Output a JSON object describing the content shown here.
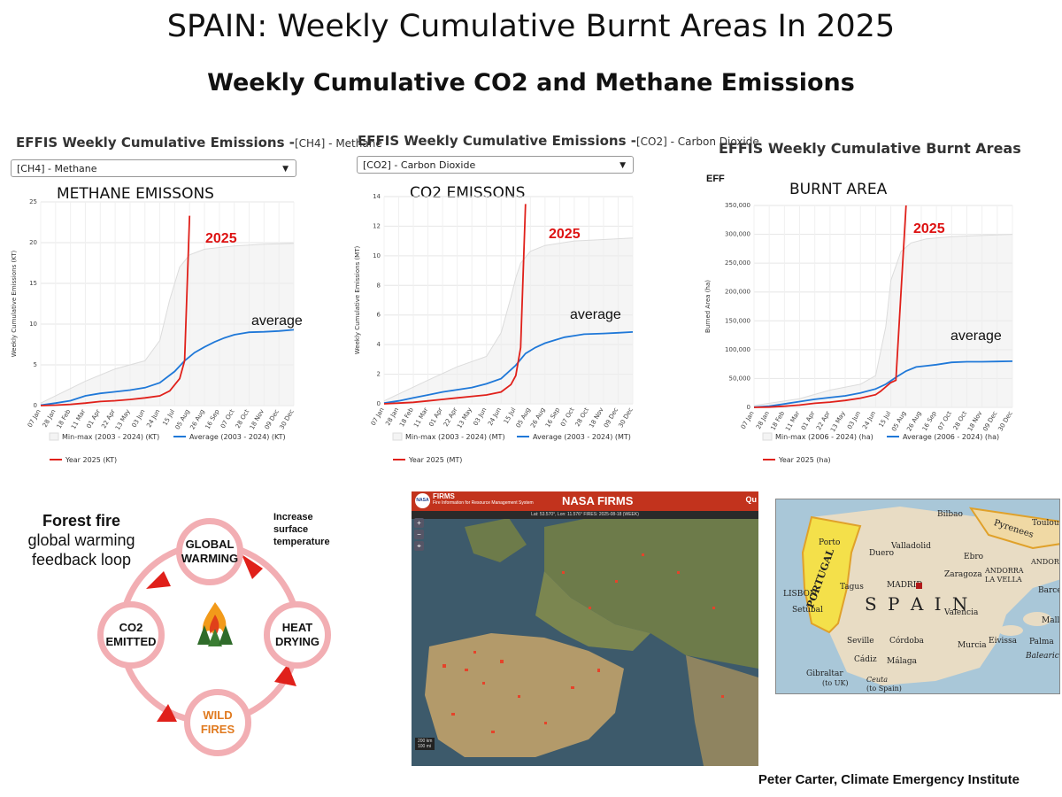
{
  "main_title": "SPAIN:  Weekly Cumulative Burnt Areas In 2025",
  "subtitle": "Weekly Cumulative CO2  and Methane Emissions",
  "colors": {
    "year_2025": "#e0201a",
    "average": "#1f78d8",
    "minmax": "#ececec"
  },
  "panels": {
    "methane": {
      "heading": "EFFIS Weekly Cumulative Emissions -",
      "heading_sub": "[CH4] - Methane",
      "select_value": "[CH4] - Methane",
      "caption": "METHANE EMISSONS"
    },
    "co2": {
      "heading": "EFFIS Weekly Cumulative Emissions -",
      "heading_sub": "[CO2] - Carbon Dioxide",
      "select_value": "[CO2] - Carbon Dioxide",
      "caption": "CO2 EMISSONS"
    },
    "burnt": {
      "heading": "EFFIS Weekly Cumulative Burnt Areas",
      "heading_sub": "",
      "partial_label": "EFF",
      "caption": "BURNT AREA"
    }
  },
  "chart_data": [
    {
      "id": "methane",
      "type": "line",
      "ylabel": "Weekly Cumulative Emissions (KT)",
      "ylim": [
        0,
        25
      ],
      "yticks": [
        "0",
        "5",
        "10",
        "15",
        "20",
        "25"
      ],
      "ytick_values": [
        0,
        5,
        10,
        15,
        20,
        25
      ],
      "xtick_labels": [
        "07 Jan",
        "28 Jan",
        "18 Feb",
        "11 Mar",
        "01 Apr",
        "22 Apr",
        "13 May",
        "03 Jun",
        "24 Jun",
        "15 Jul",
        "05 Aug",
        "26 Aug",
        "16 Sep",
        "07 Oct",
        "28 Oct",
        "18 Nov",
        "09 Dec",
        "30 Dec"
      ],
      "week_start": 1,
      "week_end": 52,
      "legend": [
        "Min-max (2003 - 2024) (KT)",
        "Average (2003 - 2024) (KT)",
        "Year 2025 (KT)"
      ],
      "annotations": {
        "year": "2025",
        "average": "average"
      },
      "series": [
        {
          "name": "Average (2003 - 2024) (KT)",
          "x": [
            1,
            4,
            7,
            10,
            13,
            16,
            19,
            22,
            25,
            28,
            30,
            32,
            34,
            36,
            38,
            40,
            42,
            43,
            46,
            49,
            52
          ],
          "y": [
            0.05,
            0.3,
            0.6,
            1.2,
            1.5,
            1.7,
            1.9,
            2.2,
            2.8,
            4.2,
            5.5,
            6.5,
            7.2,
            7.8,
            8.3,
            8.7,
            8.9,
            9.0,
            9.05,
            9.15,
            9.3
          ]
        },
        {
          "name": "Year 2025 (KT)",
          "x": [
            1,
            4,
            7,
            10,
            13,
            16,
            19,
            22,
            25,
            27,
            29,
            30,
            31
          ],
          "y": [
            0.0,
            0.05,
            0.15,
            0.3,
            0.5,
            0.6,
            0.75,
            0.95,
            1.2,
            1.8,
            3.3,
            5.5,
            23.3
          ]
        },
        {
          "name": "Min-max (2003 - 2024) (KT)",
          "x": [
            1,
            10,
            16,
            22,
            25,
            27,
            28,
            29,
            31,
            34,
            40,
            46,
            52
          ],
          "y": [
            0.3,
            3,
            4.5,
            5.5,
            8,
            13,
            15,
            17,
            18.5,
            19.2,
            19.6,
            19.8,
            19.9
          ]
        }
      ]
    },
    {
      "id": "co2",
      "type": "line",
      "ylabel": "Weekly Cumulative Emissions (MT)",
      "ylim": [
        0,
        14
      ],
      "yticks": [
        "0",
        "2",
        "4",
        "6",
        "8",
        "10",
        "12",
        "14"
      ],
      "ytick_values": [
        0,
        2,
        4,
        6,
        8,
        10,
        12,
        14
      ],
      "xtick_labels": [
        "07 Jan",
        "28 Jan",
        "18 Feb",
        "11 Mar",
        "01 Apr",
        "22 Apr",
        "13 May",
        "03 Jun",
        "24 Jun",
        "15 Jul",
        "05 Aug",
        "26 Aug",
        "16 Sep",
        "07 Oct",
        "28 Oct",
        "18 Nov",
        "09 Dec",
        "30 Dec"
      ],
      "week_start": 1,
      "week_end": 52,
      "legend": [
        "Min-max (2003 - 2024) (MT)",
        "Average (2003 - 2024) (MT)",
        "Year 2025 (MT)"
      ],
      "annotations": {
        "year": "2025",
        "average": "average"
      },
      "series": [
        {
          "name": "Average (2003 - 2024) (MT)",
          "x": [
            1,
            4,
            7,
            10,
            13,
            16,
            19,
            22,
            25,
            28,
            30,
            32,
            34,
            36,
            38,
            40,
            42,
            46,
            49,
            52
          ],
          "y": [
            0.05,
            0.2,
            0.4,
            0.6,
            0.8,
            0.95,
            1.1,
            1.35,
            1.7,
            2.6,
            3.4,
            3.8,
            4.1,
            4.3,
            4.5,
            4.6,
            4.7,
            4.75,
            4.8,
            4.85
          ]
        },
        {
          "name": "Year 2025 (MT)",
          "x": [
            1,
            4,
            7,
            10,
            13,
            16,
            19,
            22,
            25,
            27,
            28,
            29,
            30
          ],
          "y": [
            0.0,
            0.05,
            0.1,
            0.2,
            0.3,
            0.4,
            0.5,
            0.6,
            0.8,
            1.3,
            1.9,
            3.8,
            13.5
          ]
        },
        {
          "name": "Min-max (2003 - 2024) (MT)",
          "x": [
            1,
            10,
            16,
            22,
            25,
            27,
            28,
            29,
            31,
            34,
            40,
            46,
            52
          ],
          "y": [
            0.2,
            1.6,
            2.5,
            3.2,
            4.8,
            7.2,
            8.5,
            9.5,
            10.3,
            10.7,
            11.0,
            11.1,
            11.2
          ]
        }
      ]
    },
    {
      "id": "burnt",
      "type": "line",
      "ylabel": "Burned Area (ha)",
      "ylim": [
        0,
        350000
      ],
      "yticks": [
        "0",
        "50,000",
        "100,000",
        "150,000",
        "200,000",
        "250,000",
        "300,000",
        "350,000"
      ],
      "ytick_values": [
        0,
        50000,
        100000,
        150000,
        200000,
        250000,
        300000,
        350000
      ],
      "xtick_labels": [
        "07 Jan",
        "28 Jan",
        "18 Feb",
        "11 Mar",
        "01 Apr",
        "22 Apr",
        "13 May",
        "03 Jun",
        "24 Jun",
        "15 Jul",
        "05 Aug",
        "26 Aug",
        "16 Sep",
        "07 Oct",
        "28 Oct",
        "18 Nov",
        "09 Dec",
        "30 Dec"
      ],
      "week_start": 1,
      "week_end": 52,
      "legend": [
        "Min-max (2006 - 2024) (ha)",
        "Average (2006 - 2024) (ha)",
        "Year 2025 (ha)"
      ],
      "annotations": {
        "year": "2025",
        "average": "average"
      },
      "series": [
        {
          "name": "Average (2006 - 2024) (ha)",
          "x": [
            1,
            4,
            7,
            10,
            13,
            16,
            19,
            22,
            25,
            27,
            29,
            31,
            33,
            35,
            37,
            40,
            43,
            46,
            49,
            52
          ],
          "y": [
            300,
            2000,
            6000,
            10000,
            14000,
            17000,
            20000,
            25000,
            32000,
            40000,
            52000,
            63000,
            70000,
            72000,
            74000,
            78000,
            79000,
            79000,
            79500,
            80000
          ]
        },
        {
          "name": "Year 2025 (ha)",
          "x": [
            1,
            4,
            7,
            10,
            13,
            16,
            19,
            22,
            25,
            26,
            28,
            29,
            31
          ],
          "y": [
            0,
            500,
            2000,
            4000,
            7000,
            9000,
            12000,
            16000,
            22000,
            28000,
            43000,
            47000,
            350000
          ]
        },
        {
          "name": "Min-max (2006 - 2024) (ha)",
          "x": [
            1,
            10,
            16,
            22,
            25,
            27,
            28,
            30,
            32,
            35,
            40,
            46,
            52
          ],
          "y": [
            3000,
            15000,
            30000,
            40000,
            55000,
            140000,
            220000,
            270000,
            285000,
            292000,
            296000,
            298000,
            300000
          ]
        }
      ]
    }
  ],
  "feedback_loop": {
    "title_bold": "Forest fire",
    "title_rest": "global warming feedback loop",
    "nodes": [
      "GLOBAL WARMING",
      "HEAT DRYING",
      "WILD FIRES",
      "CO2 EMITTED"
    ],
    "note": "Increase surface temperature"
  },
  "firms": {
    "short_name": "FIRMS",
    "long_name": "Fire Information for Resource Management System",
    "title": "NASA FIRMS",
    "status": "Lat: 53.570°, Lon: 11.576°    FIRES: 2025-08-18 (WEEK)",
    "logo": "NASA",
    "buttons": [
      "+",
      "−"
    ],
    "scale": [
      "200 km",
      "100 mi"
    ],
    "right_label": "Qu"
  },
  "spain_map": {
    "country": "S P A I N",
    "portugal": "PORTUGAL",
    "places": [
      "Bilbao",
      "Toulouse",
      "Pyrenees",
      "ANDORRA",
      "ANDORRA",
      "LA VELLA",
      "Porto",
      "Duero",
      "Valladolid",
      "Ebro",
      "Zaragoza",
      "MADRID",
      "Barcelo",
      "Tagus",
      "LISBON",
      "Setúbal",
      "Valencia",
      "Mallo",
      "Seville",
      "Córdoba",
      "Eivissa",
      "Palma",
      "Balearic Isl",
      "Murcia",
      "Cádiz",
      "Málaga",
      "Gibraltar",
      "(to UK)",
      "Ceuta",
      "(to Spain)"
    ]
  },
  "credit": "Peter Carter, Climate Emergency Institute"
}
